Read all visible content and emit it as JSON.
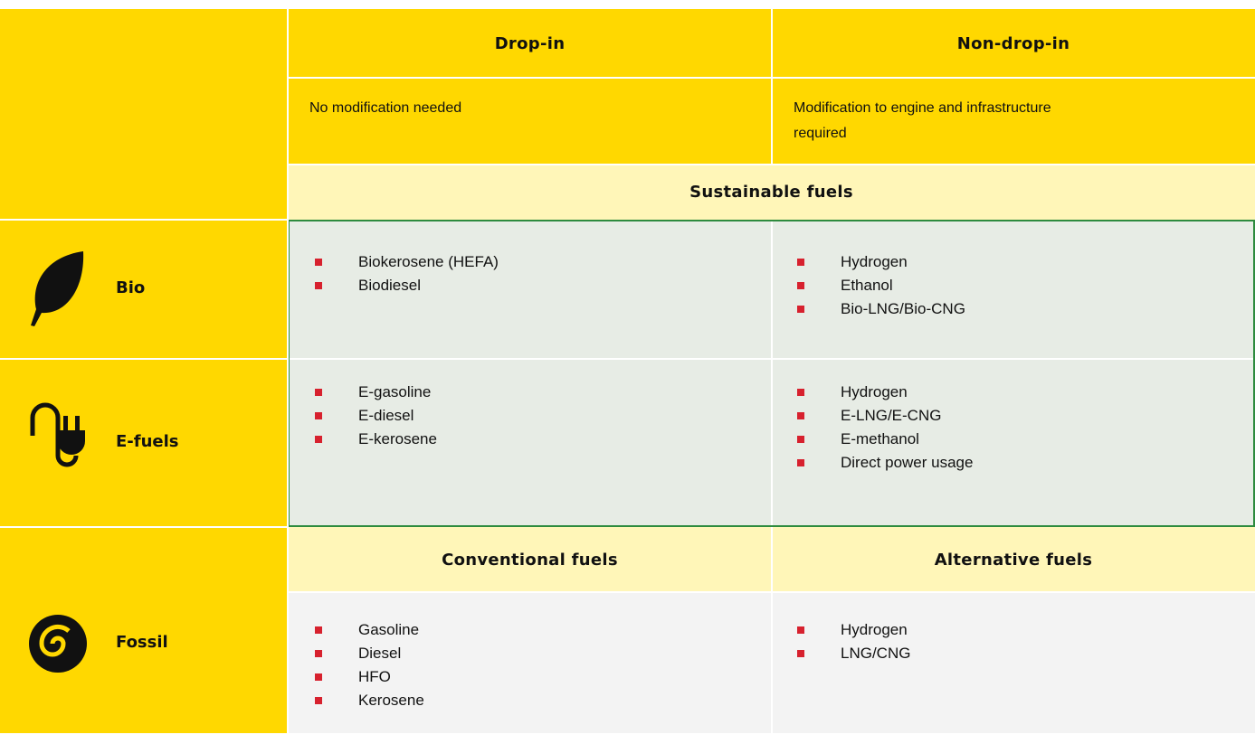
{
  "header": {
    "columns": [
      "Drop-in",
      "Non-drop-in"
    ],
    "descriptions": [
      "No modification needed",
      "Modification to engine and infrastructure required"
    ]
  },
  "sustainable_label": "Sustainable fuels",
  "rows": [
    {
      "label": "Bio",
      "drop_in": [
        "Biokerosene (HEFA)",
        "Biodiesel"
      ],
      "non_drop_in": [
        "Hydrogen",
        "Ethanol",
        "Bio-LNG/Bio-CNG"
      ]
    },
    {
      "label": "E-fuels",
      "drop_in": [
        "E-gasoline",
        "E-diesel",
        "E-kerosene"
      ],
      "non_drop_in": [
        "Hydrogen",
        "E-LNG/E-CNG",
        "E-methanol",
        "Direct power usage"
      ]
    }
  ],
  "fossil": {
    "label": "Fossil",
    "headers": [
      "Conventional fuels",
      "Alternative fuels"
    ],
    "drop_in": [
      "Gasoline",
      "Diesel",
      "HFO",
      "Kerosene"
    ],
    "non_drop_in": [
      "Hydrogen",
      "LNG/CNG"
    ]
  }
}
